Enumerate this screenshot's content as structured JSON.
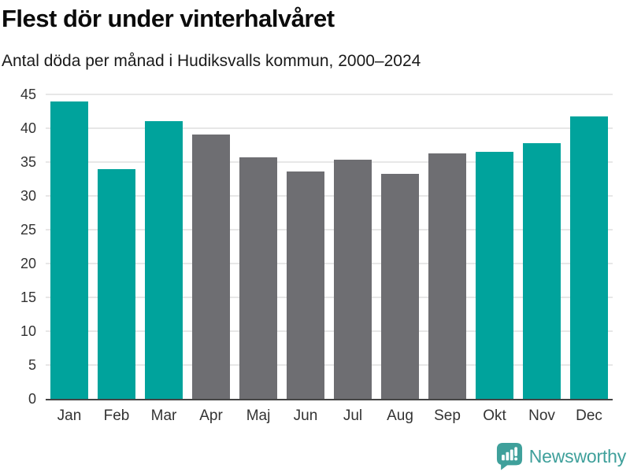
{
  "chart_data": {
    "type": "bar",
    "title": "Flest dör under vinterhalvåret",
    "subtitle": "Antal döda per månad i Hudiksvalls kommun, 2000–2024",
    "categories": [
      "Jan",
      "Feb",
      "Mar",
      "Apr",
      "Maj",
      "Jun",
      "Jul",
      "Aug",
      "Sep",
      "Okt",
      "Nov",
      "Dec"
    ],
    "values": [
      44.0,
      34.0,
      41.1,
      39.1,
      35.7,
      33.6,
      35.4,
      33.2,
      36.3,
      36.5,
      37.8,
      41.8
    ],
    "bar_colors": [
      "#00a39c",
      "#00a39c",
      "#00a39c",
      "#6e6e72",
      "#6e6e72",
      "#6e6e72",
      "#6e6e72",
      "#6e6e72",
      "#6e6e72",
      "#00a39c",
      "#00a39c",
      "#00a39c"
    ],
    "highlight_color": "#00a39c",
    "base_color": "#6e6e72",
    "xlabel": "",
    "ylabel": "",
    "ylim": [
      0,
      45
    ],
    "yticks": [
      0,
      5,
      10,
      15,
      20,
      25,
      30,
      35,
      40,
      45
    ],
    "grid": true,
    "gridline_color": "#e7e7e7",
    "axis_line_color": "#454545",
    "legend": "none"
  },
  "footer": {
    "brand": "Newsworthy",
    "brand_color": "#3fa09b",
    "logo_icon": "bar-chart-speech-bubble-icon"
  }
}
